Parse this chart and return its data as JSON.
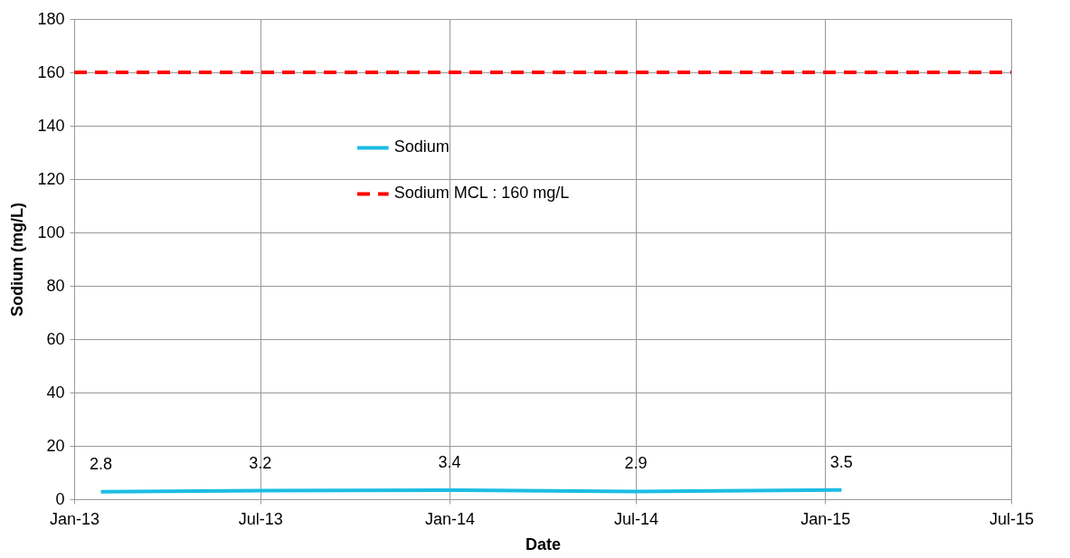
{
  "chart_data": {
    "type": "line",
    "xlabel": "Date",
    "ylabel": "Sodium (mg/L)",
    "xlim": [
      "2013-01-01",
      "2015-07-01"
    ],
    "xticks": [
      {
        "value": "2013-01-01",
        "label": "Jan-13"
      },
      {
        "value": "2013-07-01",
        "label": "Jul-13"
      },
      {
        "value": "2014-01-01",
        "label": "Jan-14"
      },
      {
        "value": "2014-07-01",
        "label": "Jul-14"
      },
      {
        "value": "2015-01-01",
        "label": "Jan-15"
      },
      {
        "value": "2015-07-01",
        "label": "Jul-15"
      }
    ],
    "ylim": [
      0,
      180
    ],
    "yticks": [
      0,
      20,
      40,
      60,
      80,
      100,
      120,
      140,
      160,
      180
    ],
    "series": [
      {
        "name": "Sodium",
        "color": "#1cbce4",
        "x": [
          "2013-01-27",
          "2013-07-01",
          "2014-01-01",
          "2014-07-01",
          "2015-01-17"
        ],
        "values": [
          2.8,
          3.2,
          3.4,
          2.9,
          3.5
        ],
        "data_labels": true
      },
      {
        "name": "Sodium MCL : 160 mg/L",
        "color": "#ff0000",
        "line_style": "dashed",
        "x": [
          "2013-01-01",
          "2015-07-01"
        ],
        "values": [
          160,
          160
        ]
      }
    ],
    "grid": true,
    "legend": "top"
  }
}
